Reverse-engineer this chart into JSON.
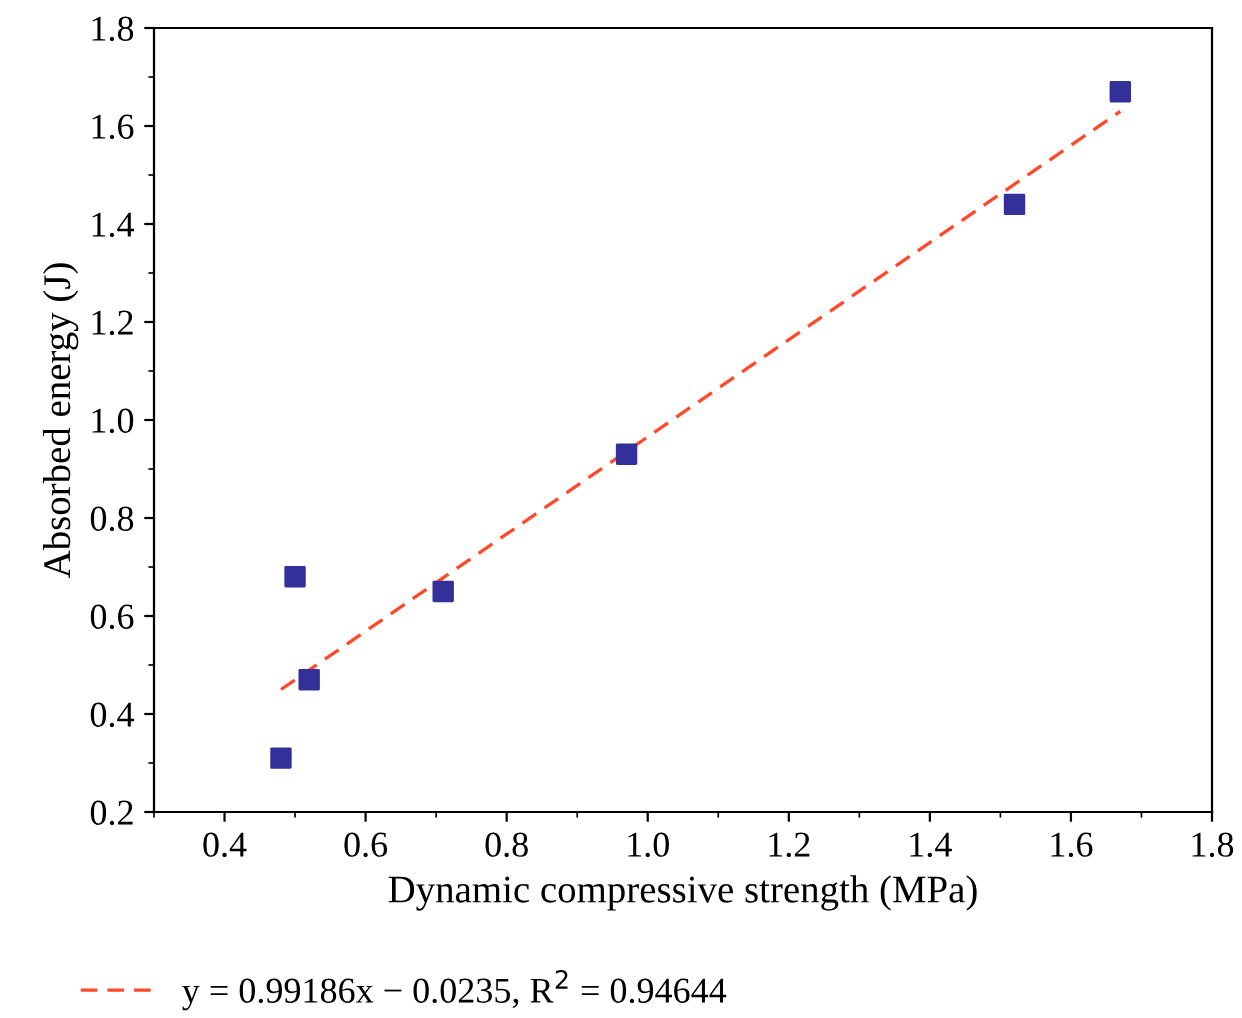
{
  "chart_data": {
    "type": "scatter",
    "xlabel": "Dynamic compressive strength (MPa)",
    "ylabel": "Absorbed energy (J)",
    "xlim": [
      0.3,
      1.8
    ],
    "xticks": [
      0.4,
      0.6,
      0.8,
      {
        "value": 1,
        "label": "1.0"
      },
      1.2,
      1.4,
      1.6,
      1.8
    ],
    "ylim": [
      0.2,
      1.8
    ],
    "yticks": [
      0.2,
      0.4,
      0.6,
      0.8,
      {
        "value": 1,
        "label": "1.0"
      },
      1.2,
      1.4,
      1.6,
      1.8
    ],
    "grid": false,
    "legend": "bottom",
    "marker": "square",
    "series": [
      {
        "color": "#33309a",
        "x": [
          0.48,
          0.5,
          0.52,
          0.71,
          0.97,
          1.52,
          1.67
        ],
        "values": [
          0.31,
          0.68,
          0.47,
          0.65,
          0.93,
          1.44,
          1.67
        ]
      },
      {
        "type": "line",
        "name": "y = 0.99186x − 0.0235, R$^{2}$ = 0.94644",
        "color": "#ff4b2b",
        "line_style": "dashed",
        "marker": "none",
        "x": [
          0.48,
          1.67
        ],
        "values": [
          0.45,
          1.63
        ]
      }
    ]
  }
}
